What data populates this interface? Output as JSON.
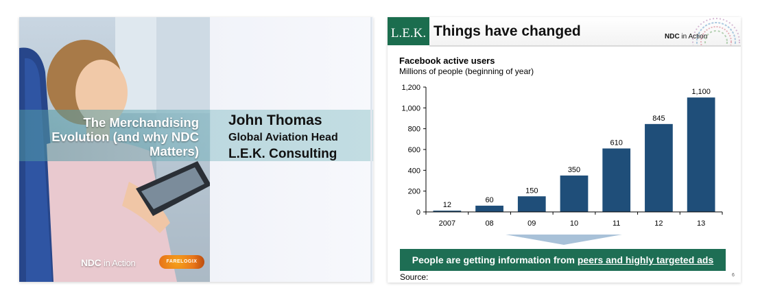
{
  "left_slide": {
    "title_lines": [
      "The Merchandising",
      "Evolution (and why NDC",
      "Matters)"
    ],
    "presenter_name": "John Thomas",
    "presenter_role": "Global Aviation Head",
    "presenter_org": "L.E.K. Consulting",
    "logo_ndc": "NDC",
    "logo_in_action": "in Action",
    "logo_farelogix": "FARELOGIX"
  },
  "right_slide": {
    "brand": "L.E.K.",
    "title": "Things have changed",
    "logo_ndc": "NDC",
    "logo_in_action": "in Action",
    "callout_prefix": "People are getting information from ",
    "callout_highlight": "peers and highly targeted ads",
    "source_label": "Source:",
    "page_number": "6",
    "colors": {
      "header_green": "#1b6d4e",
      "bar": "#1f4e79",
      "callout": "#1e6e54",
      "arrow": "#a8c1d8"
    }
  },
  "chart_data": {
    "type": "bar",
    "title": "Facebook active users",
    "subtitle": "Millions of people (beginning of year)",
    "categories": [
      "2007",
      "08",
      "09",
      "10",
      "11",
      "12",
      "13"
    ],
    "values": [
      12,
      60,
      150,
      350,
      610,
      845,
      1100
    ],
    "value_labels": [
      "12",
      "60",
      "150",
      "350",
      "610",
      "845",
      "1,100"
    ],
    "y_ticks": [
      "0",
      "200",
      "400",
      "600",
      "800",
      "1,000",
      "1,200"
    ],
    "ylim": [
      0,
      1200
    ],
    "grid": false
  }
}
